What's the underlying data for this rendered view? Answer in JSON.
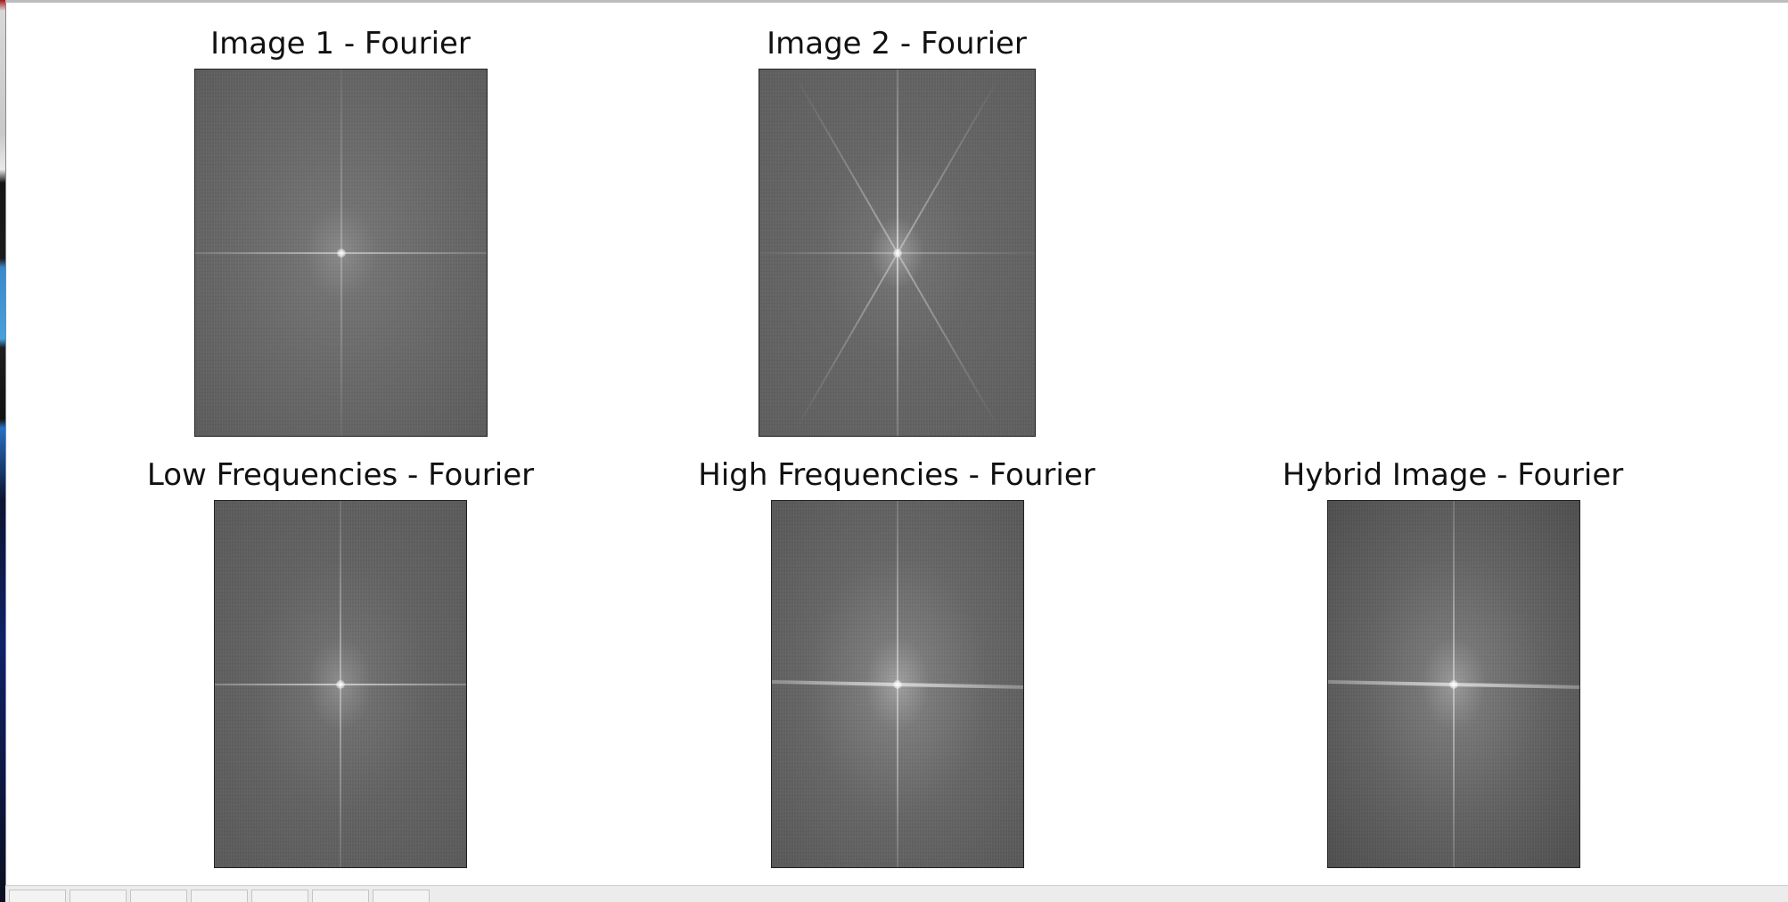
{
  "figure": {
    "subplots": [
      {
        "id": "image1",
        "title": "Image 1 - Fourier"
      },
      {
        "id": "image2",
        "title": "Image 2 - Fourier"
      },
      {
        "id": "low",
        "title": "Low Frequencies - Fourier"
      },
      {
        "id": "high",
        "title": "High Frequencies - Fourier"
      },
      {
        "id": "hybrid",
        "title": "Hybrid Image - Fourier"
      }
    ]
  },
  "toolbar": {
    "buttons": [
      {
        "icon": "home-icon"
      },
      {
        "icon": "back-icon"
      },
      {
        "icon": "forward-icon"
      },
      {
        "icon": "pan-icon"
      },
      {
        "icon": "zoom-icon"
      },
      {
        "icon": "configure-subplots-icon"
      },
      {
        "icon": "save-icon"
      }
    ]
  },
  "colors": {
    "background": "#ffffff",
    "spectrum_gray": "#666666",
    "title_text": "#111111"
  }
}
